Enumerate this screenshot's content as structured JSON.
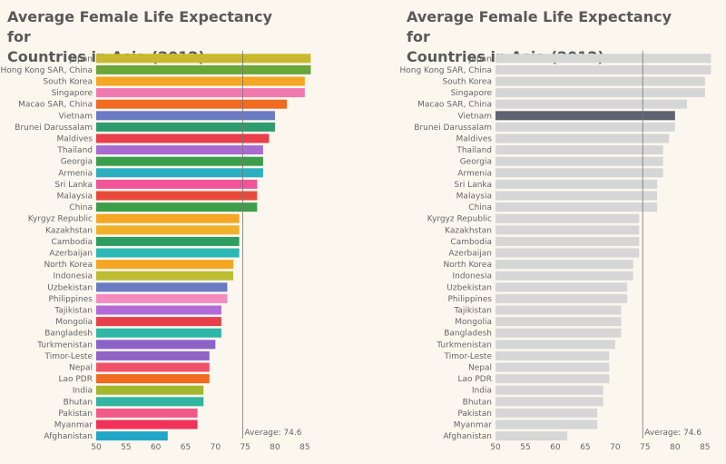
{
  "charts": [
    {
      "title_line1": "Average Female Life Expectancy for",
      "title_line2": "Countries in Asia (2012)"
    },
    {
      "title_line1": "Average Female Life Expectancy for",
      "title_line2": "Countries in Asia (2012)"
    }
  ],
  "chart_data": [
    {
      "type": "bar",
      "orientation": "horizontal",
      "title": "Average Female Life Expectancy for Countries in Asia (2012)",
      "xlim": [
        50,
        87
      ],
      "xticks": [
        50,
        55,
        60,
        65,
        70,
        75,
        80,
        85
      ],
      "reference_line": {
        "value": 74.6,
        "label": "Average: 74.6"
      },
      "categories": [
        "Japan",
        "Hong Kong SAR, China",
        "South Korea",
        "Singapore",
        "Macao SAR, China",
        "Vietnam",
        "Brunei Darussalam",
        "Maldives",
        "Thailand",
        "Georgia",
        "Armenia",
        "Sri Lanka",
        "Malaysia",
        "China",
        "Kyrgyz Republic",
        "Kazakhstan",
        "Cambodia",
        "Azerbaijan",
        "North Korea",
        "Indonesia",
        "Uzbekistan",
        "Philippines",
        "Tajikistan",
        "Mongolia",
        "Bangladesh",
        "Turkmenistan",
        "Timor-Leste",
        "Nepal",
        "Lao PDR",
        "India",
        "Bhutan",
        "Pakistan",
        "Myanmar",
        "Afghanistan"
      ],
      "values": [
        86,
        86,
        85,
        85,
        82,
        80,
        80,
        79,
        78,
        78,
        78,
        77,
        77,
        77,
        74,
        74,
        74,
        74,
        73,
        73,
        72,
        72,
        71,
        71,
        71,
        70,
        69,
        69,
        69,
        68,
        68,
        67,
        67,
        62
      ],
      "colors": [
        "#c9b92e",
        "#6aa639",
        "#f5a623",
        "#f07ab0",
        "#f06a1f",
        "#6a7bc4",
        "#2f9c6e",
        "#e8404a",
        "#a96bd0",
        "#3a9e4b",
        "#2bb0c2",
        "#f0559a",
        "#e84a39",
        "#3d9e4a",
        "#f5a623",
        "#f2b12a",
        "#2d9d62",
        "#2cb8b5",
        "#f5a623",
        "#bdbd32",
        "#6a7bc4",
        "#f58cc0",
        "#b26ad6",
        "#e8404a",
        "#2db8a8",
        "#8a62c8",
        "#8f63c8",
        "#f2506a",
        "#f06a1f",
        "#a4b82d",
        "#2fb5a0",
        "#f05a8a",
        "#f0325a",
        "#22a7c9"
      ],
      "grid": false,
      "legend": "none"
    },
    {
      "type": "bar",
      "orientation": "horizontal",
      "title": "Average Female Life Expectancy for Countries in Asia (2012)",
      "xlim": [
        50,
        87
      ],
      "xticks": [
        50,
        55,
        60,
        65,
        70,
        75,
        80,
        85
      ],
      "reference_line": {
        "value": 74.6,
        "label": "Average: 74.6"
      },
      "categories": [
        "Japan",
        "Hong Kong SAR, China",
        "South Korea",
        "Singapore",
        "Macao SAR, China",
        "Vietnam",
        "Brunei Darussalam",
        "Maldives",
        "Thailand",
        "Georgia",
        "Armenia",
        "Sri Lanka",
        "Malaysia",
        "China",
        "Kyrgyz Republic",
        "Kazakhstan",
        "Cambodia",
        "Azerbaijan",
        "North Korea",
        "Indonesia",
        "Uzbekistan",
        "Philippines",
        "Tajikistan",
        "Mongolia",
        "Bangladesh",
        "Turkmenistan",
        "Timor-Leste",
        "Nepal",
        "Lao PDR",
        "India",
        "Bhutan",
        "Pakistan",
        "Myanmar",
        "Afghanistan"
      ],
      "values": [
        86,
        86,
        85,
        85,
        82,
        80,
        80,
        79,
        78,
        78,
        78,
        77,
        77,
        77,
        74,
        74,
        74,
        74,
        73,
        73,
        72,
        72,
        71,
        71,
        71,
        70,
        69,
        69,
        69,
        68,
        68,
        67,
        67,
        62
      ],
      "highlight": "Vietnam",
      "bar_color": "#d6d6d6",
      "highlight_color": "#5b6470",
      "grid": false,
      "legend": "none"
    }
  ]
}
